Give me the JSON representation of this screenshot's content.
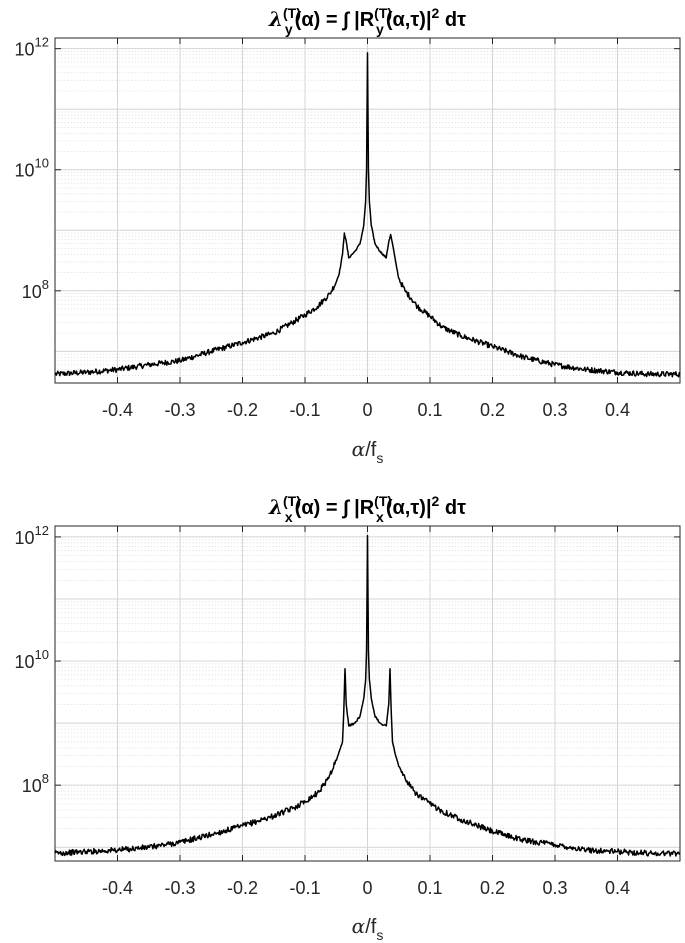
{
  "chart_data": [
    {
      "type": "line",
      "title": {
        "lambda": "λ",
        "sub": "y",
        "sup": "(T)",
        "arg": "(α) = ∫ |R",
        "sub2": "y",
        "sup2": "(T)",
        "arg2": "(α,τ)|",
        "pow": "2",
        "tail": " dτ"
      },
      "xlabel": {
        "main": "α/f",
        "sub": "s"
      },
      "ylabel": "",
      "xlim": [
        -0.5,
        0.5
      ],
      "ylim": [
        3000000.0,
        1500000000000.0
      ],
      "yscale": "log",
      "grid": true,
      "minor_grid": true,
      "xticks": [
        -0.4,
        -0.3,
        -0.2,
        -0.1,
        0,
        0.1,
        0.2,
        0.3,
        0.4
      ],
      "xtick_labels": [
        "-0.4",
        "-0.3",
        "-0.2",
        "-0.1",
        "0",
        "0.1",
        "0.2",
        "0.3",
        "0.4"
      ],
      "yticks": [
        {
          "base": "10",
          "exp": "8",
          "value": 100000000.0
        },
        {
          "base": "10",
          "exp": "10",
          "value": 10000000000.0
        },
        {
          "base": "10",
          "exp": "12",
          "value": 1000000000000.0
        }
      ],
      "series": [
        {
          "color": "#000000",
          "x": [
            -0.5,
            -0.45,
            -0.4,
            -0.35,
            -0.3,
            -0.25,
            -0.2,
            -0.15,
            -0.12,
            -0.1,
            -0.08,
            -0.07,
            -0.06,
            -0.05,
            -0.045,
            -0.04,
            -0.037,
            -0.034,
            -0.03,
            -0.02,
            -0.012,
            -0.006,
            -0.003,
            -0.0015,
            0,
            0.0015,
            0.003,
            0.006,
            0.012,
            0.02,
            0.03,
            0.034,
            0.037,
            0.04,
            0.045,
            0.05,
            0.06,
            0.07,
            0.08,
            0.1,
            0.12,
            0.15,
            0.2,
            0.25,
            0.3,
            0.35,
            0.4,
            0.45,
            0.5
          ],
          "y": [
            4200000.0,
            4500000.0,
            5000000.0,
            6000000.0,
            7000000.0,
            10000000.0,
            14000000.0,
            20000000.0,
            30000000.0,
            40000000.0,
            55000000.0,
            70000000.0,
            90000000.0,
            140000000.0,
            200000000.0,
            400000000.0,
            900000000.0,
            650000000.0,
            350000000.0,
            450000000.0,
            600000000.0,
            1200000000.0,
            3000000000.0,
            10000000000.0,
            850000000000.0,
            10000000000.0,
            3000000000.0,
            1200000000.0,
            600000000.0,
            450000000.0,
            350000000.0,
            650000000.0,
            850000000.0,
            600000000.0,
            300000000.0,
            160000000.0,
            100000000.0,
            75000000.0,
            55000000.0,
            38000000.0,
            25000000.0,
            18000000.0,
            12000000.0,
            8000000.0,
            6000000.0,
            5000000.0,
            4500000.0,
            4200000.0,
            4200000.0
          ]
        }
      ]
    },
    {
      "type": "line",
      "title": {
        "lambda": "λ",
        "sub": "x",
        "sup": "(T)",
        "arg": "(α) = ∫ |R",
        "sub2": "x",
        "sup2": "(T)",
        "arg2": "(α,τ)|",
        "pow": "2",
        "tail": " dτ"
      },
      "xlabel": {
        "main": "α/f",
        "sub": "s"
      },
      "ylabel": "",
      "xlim": [
        -0.5,
        0.5
      ],
      "ylim": [
        6000000.0,
        1500000000000.0
      ],
      "yscale": "log",
      "grid": true,
      "minor_grid": true,
      "xticks": [
        -0.4,
        -0.3,
        -0.2,
        -0.1,
        0,
        0.1,
        0.2,
        0.3,
        0.4
      ],
      "xtick_labels": [
        "-0.4",
        "-0.3",
        "-0.2",
        "-0.1",
        "0",
        "0.1",
        "0.2",
        "0.3",
        "0.4"
      ],
      "yticks": [
        {
          "base": "10",
          "exp": "8",
          "value": 100000000.0
        },
        {
          "base": "10",
          "exp": "10",
          "value": 10000000000.0
        },
        {
          "base": "10",
          "exp": "12",
          "value": 1000000000000.0
        }
      ],
      "series": [
        {
          "color": "#000000",
          "x": [
            -0.5,
            -0.45,
            -0.4,
            -0.35,
            -0.3,
            -0.25,
            -0.2,
            -0.15,
            -0.12,
            -0.1,
            -0.08,
            -0.07,
            -0.06,
            -0.05,
            -0.045,
            -0.04,
            -0.038,
            -0.036,
            -0.034,
            -0.03,
            -0.02,
            -0.012,
            -0.006,
            -0.003,
            -0.0015,
            0,
            0.0015,
            0.003,
            0.006,
            0.012,
            0.02,
            0.03,
            0.034,
            0.036,
            0.038,
            0.04,
            0.045,
            0.05,
            0.06,
            0.07,
            0.08,
            0.1,
            0.12,
            0.15,
            0.2,
            0.25,
            0.3,
            0.35,
            0.4,
            0.45,
            0.5
          ],
          "y": [
            8000000.0,
            8500000.0,
            9000000.0,
            10000000.0,
            12000000.0,
            16000000.0,
            22000000.0,
            32000000.0,
            42000000.0,
            55000000.0,
            75000000.0,
            100000000.0,
            150000000.0,
            250000000.0,
            350000000.0,
            500000000.0,
            1500000000.0,
            7500000000.0,
            2000000000.0,
            900000000.0,
            1000000000.0,
            1300000000.0,
            2500000000.0,
            5000000000.0,
            15000000000.0,
            1050000000000.0,
            15000000000.0,
            5000000000.0,
            2500000000.0,
            1300000000.0,
            1000000000.0,
            900000000.0,
            2000000000.0,
            7500000000.0,
            1500000000.0,
            500000000.0,
            300000000.0,
            200000000.0,
            130000000.0,
            90000000.0,
            70000000.0,
            50000000.0,
            38000000.0,
            28000000.0,
            18000000.0,
            13000000.0,
            11000000.0,
            9000000.0,
            8500000.0,
            8000000.0,
            8000000.0
          ]
        }
      ]
    }
  ]
}
